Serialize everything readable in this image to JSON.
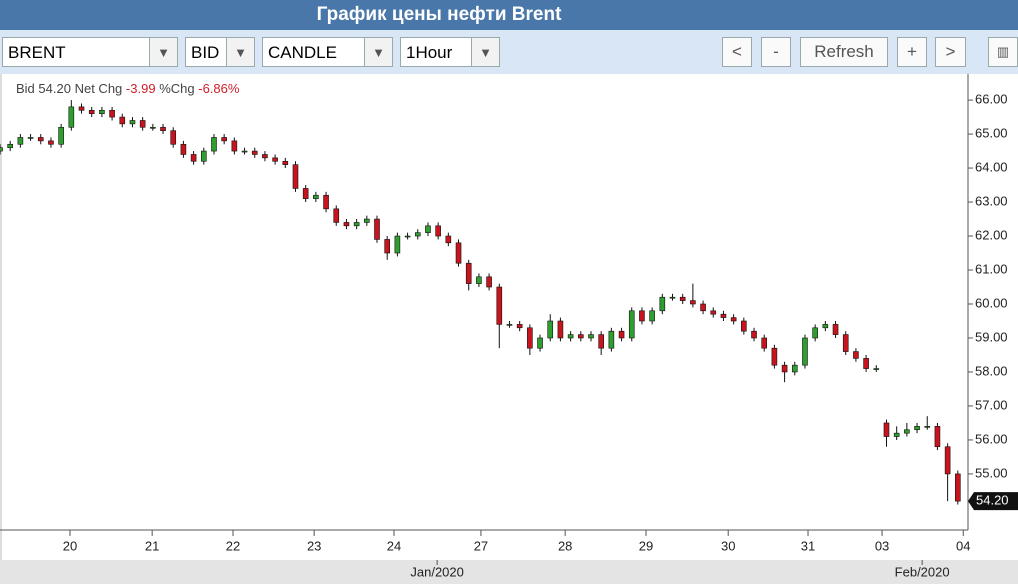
{
  "header": {
    "title": "График цены нефти Brent"
  },
  "toolbar": {
    "selects": [
      "BRENT",
      "BID",
      "CANDLE",
      "1Hour"
    ],
    "buttons": [
      "<",
      "-",
      "Refresh",
      "+",
      ">"
    ]
  },
  "summary": {
    "bid_label": "Bid",
    "bid": "54.20",
    "net_chg_label": "Net Chg",
    "net_chg": "-3.99",
    "pct_chg_label": "%Chg",
    "pct_chg": "-6.86%"
  },
  "chart_data": {
    "type": "candlestick",
    "up_color": "#2e9e2e",
    "down_color": "#c8141e",
    "x": [
      0,
      3,
      6,
      9,
      12,
      15,
      18,
      21,
      24,
      27,
      30,
      33,
      36,
      39,
      42,
      45,
      48,
      51,
      54,
      57,
      60,
      63,
      66,
      69,
      72,
      75,
      78,
      81,
      84,
      87,
      90,
      93,
      96,
      99,
      102,
      105,
      108,
      111,
      114,
      117,
      120,
      123,
      126,
      129,
      132,
      135,
      138,
      141,
      144,
      147,
      150,
      153,
      156,
      159,
      162,
      165,
      168,
      171,
      174,
      177,
      180,
      183,
      186,
      189,
      192,
      195,
      198,
      201,
      204,
      207,
      210,
      213,
      216,
      219,
      222,
      225,
      228,
      231,
      234,
      237,
      240,
      243,
      246,
      249,
      252,
      255,
      258,
      261,
      264,
      267,
      270,
      273,
      276,
      279,
      282
    ],
    "open": [
      64.5,
      64.6,
      64.7,
      64.9,
      64.9,
      64.8,
      64.7,
      65.2,
      65.8,
      65.7,
      65.6,
      65.7,
      65.5,
      65.3,
      65.4,
      65.2,
      65.2,
      65.1,
      64.7,
      64.4,
      64.2,
      64.5,
      64.9,
      64.8,
      64.5,
      64.5,
      64.4,
      64.3,
      64.2,
      64.1,
      63.4,
      63.1,
      63.2,
      62.8,
      62.4,
      62.3,
      62.4,
      62.5,
      61.9,
      61.5,
      62.0,
      62.0,
      62.1,
      62.3,
      62.0,
      61.8,
      61.2,
      60.6,
      60.8,
      60.5,
      59.4,
      59.4,
      59.3,
      58.7,
      59.0,
      59.5,
      59.0,
      59.1,
      59.0,
      59.1,
      58.7,
      59.2,
      59.0,
      59.8,
      59.5,
      59.8,
      60.2,
      60.2,
      60.1,
      60.0,
      59.8,
      59.7,
      59.6,
      59.5,
      59.2,
      59.0,
      58.7,
      58.2,
      58.0,
      58.2,
      59.0,
      59.3,
      59.4,
      59.1,
      58.6,
      58.4,
      58.1,
      56.5,
      56.1,
      56.2,
      56.3,
      56.4,
      56.4,
      55.8,
      55.0
    ],
    "high": [
      64.7,
      64.8,
      65.0,
      65.0,
      65.0,
      64.9,
      65.3,
      66.0,
      65.9,
      65.8,
      65.8,
      65.8,
      65.6,
      65.5,
      65.5,
      65.3,
      65.3,
      65.2,
      64.8,
      64.5,
      64.6,
      65.0,
      65.0,
      64.9,
      64.6,
      64.6,
      64.5,
      64.4,
      64.3,
      64.2,
      63.5,
      63.3,
      63.3,
      62.9,
      62.5,
      62.5,
      62.6,
      62.6,
      62.0,
      62.1,
      62.1,
      62.2,
      62.4,
      62.4,
      62.1,
      61.9,
      61.3,
      60.9,
      60.9,
      60.6,
      59.5,
      59.5,
      59.4,
      59.1,
      59.7,
      59.6,
      59.2,
      59.2,
      59.2,
      59.2,
      59.3,
      59.3,
      59.9,
      59.9,
      59.9,
      60.3,
      60.3,
      60.3,
      60.6,
      60.1,
      59.9,
      59.8,
      59.7,
      59.6,
      59.3,
      59.1,
      58.8,
      58.3,
      58.3,
      59.1,
      59.4,
      59.5,
      59.5,
      59.2,
      58.7,
      58.5,
      58.2,
      56.6,
      56.4,
      56.5,
      56.5,
      56.7,
      56.5,
      55.9,
      55.1
    ],
    "low": [
      64.4,
      64.5,
      64.6,
      64.8,
      64.7,
      64.6,
      64.6,
      65.1,
      65.6,
      65.5,
      65.5,
      65.4,
      65.2,
      65.2,
      65.1,
      65.1,
      65.0,
      64.6,
      64.3,
      64.1,
      64.1,
      64.4,
      64.7,
      64.4,
      64.4,
      64.3,
      64.2,
      64.1,
      64.0,
      63.3,
      63.0,
      63.0,
      62.7,
      62.3,
      62.2,
      62.2,
      62.3,
      61.8,
      61.3,
      61.4,
      61.9,
      61.9,
      62.0,
      61.9,
      61.7,
      61.1,
      60.4,
      60.5,
      60.4,
      58.7,
      59.3,
      59.2,
      58.5,
      58.6,
      58.9,
      58.9,
      58.9,
      58.9,
      58.9,
      58.5,
      58.6,
      58.9,
      58.9,
      59.4,
      59.4,
      59.7,
      60.1,
      60.0,
      59.9,
      59.7,
      59.6,
      59.5,
      59.4,
      59.1,
      58.9,
      58.6,
      58.1,
      57.7,
      57.9,
      58.1,
      58.9,
      59.2,
      59.0,
      58.5,
      58.3,
      58.0,
      58.0,
      55.8,
      56.0,
      56.1,
      56.2,
      56.3,
      55.7,
      54.2,
      54.1
    ],
    "close": [
      64.6,
      64.7,
      64.9,
      64.9,
      64.8,
      64.7,
      65.2,
      65.8,
      65.7,
      65.6,
      65.7,
      65.5,
      65.3,
      65.4,
      65.2,
      65.2,
      65.1,
      64.7,
      64.4,
      64.2,
      64.5,
      64.9,
      64.8,
      64.5,
      64.5,
      64.4,
      64.3,
      64.2,
      64.1,
      63.4,
      63.1,
      63.2,
      62.8,
      62.4,
      62.3,
      62.4,
      62.5,
      61.9,
      61.5,
      62.0,
      62.0,
      62.1,
      62.3,
      62.0,
      61.8,
      61.2,
      60.6,
      60.8,
      60.5,
      59.4,
      59.4,
      59.3,
      58.7,
      59.0,
      59.5,
      59.0,
      59.1,
      59.0,
      59.1,
      58.7,
      59.2,
      59.0,
      59.8,
      59.5,
      59.8,
      60.2,
      60.2,
      60.1,
      60.0,
      59.8,
      59.7,
      59.6,
      59.5,
      59.2,
      59.0,
      58.7,
      58.2,
      58.0,
      58.2,
      59.0,
      59.3,
      59.4,
      59.1,
      58.6,
      58.4,
      58.1,
      58.1,
      56.1,
      56.2,
      56.3,
      56.4,
      56.4,
      55.8,
      55.0,
      54.2
    ],
    "xlim": [
      0,
      285
    ],
    "ylim": [
      53.35,
      66.65
    ],
    "yticks": [
      {
        "value": 55,
        "label": "55.00"
      },
      {
        "value": 56,
        "label": "56.00"
      },
      {
        "value": 57,
        "label": "57.00"
      },
      {
        "value": 58,
        "label": "58.00"
      },
      {
        "value": 59,
        "label": "59.00"
      },
      {
        "value": 60,
        "label": "60.00"
      },
      {
        "value": 61,
        "label": "61.00"
      },
      {
        "value": 62,
        "label": "62.00"
      },
      {
        "value": 63,
        "label": "63.00"
      },
      {
        "value": 64,
        "label": "64.00"
      },
      {
        "value": 65,
        "label": "65.00"
      },
      {
        "value": 66,
        "label": "66.00"
      }
    ],
    "xticks": [
      {
        "value": 20.6,
        "label": "20"
      },
      {
        "value": 44.8,
        "label": "21"
      },
      {
        "value": 68.6,
        "label": "22"
      },
      {
        "value": 92.5,
        "label": "23"
      },
      {
        "value": 116,
        "label": "24"
      },
      {
        "value": 141.6,
        "label": "27"
      },
      {
        "value": 166.4,
        "label": "28"
      },
      {
        "value": 190.2,
        "label": "29"
      },
      {
        "value": 214.4,
        "label": "30"
      },
      {
        "value": 237.9,
        "label": "31"
      },
      {
        "value": 259.7,
        "label": "03"
      },
      {
        "value": 283.6,
        "label": "04"
      }
    ],
    "month_labels": [
      {
        "value": 128.7,
        "label": "Jan/2020"
      },
      {
        "value": 271.5,
        "label": "Feb/2020"
      }
    ]
  }
}
